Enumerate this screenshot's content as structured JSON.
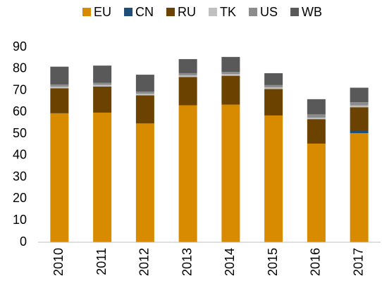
{
  "chart_data": {
    "type": "stacked_bar",
    "categories": [
      "2010",
      "2011",
      "2012",
      "2013",
      "2014",
      "2015",
      "2016",
      "2017"
    ],
    "series": [
      {
        "name": "EU",
        "color": "#d98b00",
        "values": [
          59.5,
          59.8,
          54.8,
          63.2,
          63.5,
          58.5,
          45.5,
          50.3
        ]
      },
      {
        "name": "CN",
        "color": "#1f4e79",
        "values": [
          0,
          0,
          0,
          0,
          0,
          0,
          0,
          1.2
        ]
      },
      {
        "name": "RU",
        "color": "#6b4200",
        "values": [
          11.5,
          12,
          13,
          13,
          13.3,
          12.2,
          11.3,
          10.8
        ]
      },
      {
        "name": "TK",
        "color": "#c0c0c0",
        "values": [
          0.8,
          0.8,
          0.7,
          0.8,
          0.8,
          0.8,
          0.7,
          0.8
        ]
      },
      {
        "name": "US",
        "color": "#8c8c8c",
        "values": [
          1,
          1,
          1,
          1,
          1,
          1,
          1.5,
          1.5
        ]
      },
      {
        "name": "WB",
        "color": "#595959",
        "values": [
          8.2,
          7.9,
          7.8,
          6.5,
          6.9,
          5.5,
          7,
          6.7
        ]
      }
    ],
    "ylim": [
      0,
      90
    ],
    "yticks": [
      0,
      10,
      20,
      30,
      40,
      50,
      60,
      70,
      80,
      90
    ],
    "grid": false,
    "legend": "top"
  }
}
